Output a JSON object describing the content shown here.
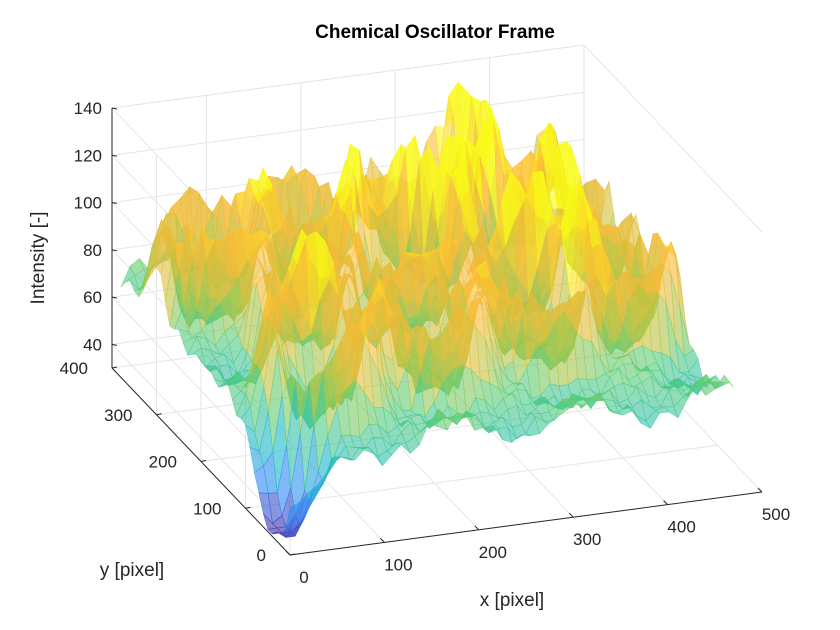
{
  "chart_data": {
    "type": "surface",
    "title": "Chemical Oscillator Frame",
    "xlabel": "x [pixel]",
    "ylabel": "y [pixel]",
    "zlabel": "Intensity [-]",
    "xlim": [
      0,
      500
    ],
    "ylim": [
      0,
      400
    ],
    "zlim": [
      30,
      140
    ],
    "x_ticks": [
      0,
      100,
      200,
      300,
      400,
      500
    ],
    "y_ticks": [
      0,
      100,
      200,
      300,
      400
    ],
    "z_ticks": [
      40,
      60,
      80,
      100,
      120,
      140
    ],
    "grid": true,
    "colormap": [
      "#3e26a8",
      "#2e87f7",
      "#1bb9c8",
      "#57cc7a",
      "#c4c23a",
      "#fbb938",
      "#f9fb15"
    ],
    "surface_alpha": 0.6
  }
}
